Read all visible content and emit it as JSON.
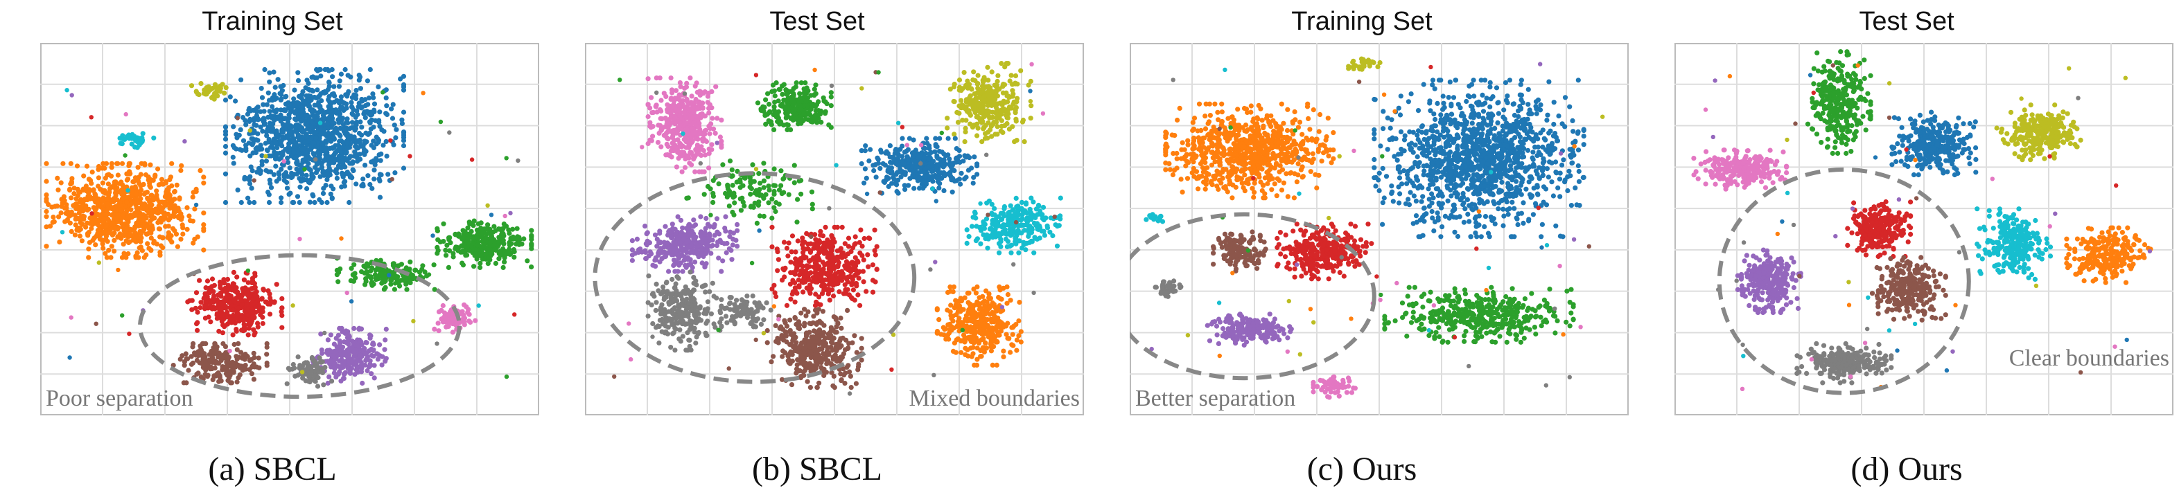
{
  "chart_data": [
    {
      "type": "scatter",
      "title": "Training Set",
      "caption": "(a) SBCL",
      "annotation": "Poor separation",
      "grid": true,
      "clusters": [
        {
          "color": "#1f77b4",
          "cx": 0.55,
          "cy": 0.25,
          "rx": 0.17,
          "ry": 0.17,
          "n": 1100
        },
        {
          "color": "#ff7f0e",
          "cx": 0.17,
          "cy": 0.45,
          "rx": 0.15,
          "ry": 0.12,
          "n": 800
        },
        {
          "color": "#2ca02c",
          "cx": 0.89,
          "cy": 0.54,
          "rx": 0.09,
          "ry": 0.06,
          "n": 300
        },
        {
          "color": "#2ca02c",
          "cx": 0.7,
          "cy": 0.62,
          "rx": 0.1,
          "ry": 0.04,
          "n": 150
        },
        {
          "color": "#d62728",
          "cx": 0.39,
          "cy": 0.7,
          "rx": 0.09,
          "ry": 0.08,
          "n": 350
        },
        {
          "color": "#8c564b",
          "cx": 0.36,
          "cy": 0.86,
          "rx": 0.09,
          "ry": 0.05,
          "n": 200
        },
        {
          "color": "#9467bd",
          "cx": 0.62,
          "cy": 0.84,
          "rx": 0.07,
          "ry": 0.07,
          "n": 250
        },
        {
          "color": "#7f7f7f",
          "cx": 0.54,
          "cy": 0.88,
          "rx": 0.05,
          "ry": 0.04,
          "n": 80
        },
        {
          "color": "#e377c2",
          "cx": 0.83,
          "cy": 0.74,
          "rx": 0.04,
          "ry": 0.035,
          "n": 80
        },
        {
          "color": "#bcbd22",
          "cx": 0.34,
          "cy": 0.13,
          "rx": 0.04,
          "ry": 0.02,
          "n": 40
        },
        {
          "color": "#17becf",
          "cx": 0.19,
          "cy": 0.26,
          "rx": 0.04,
          "ry": 0.02,
          "n": 30
        }
      ],
      "ellipse": {
        "cx": 0.52,
        "cy": 0.76,
        "rx": 0.32,
        "ry": 0.19
      }
    },
    {
      "type": "scatter",
      "title": "Test Set",
      "caption": "(b) SBCL",
      "annotation": "Mixed boundaries",
      "grid": true,
      "clusters": [
        {
          "color": "#e377c2",
          "cx": 0.2,
          "cy": 0.22,
          "rx": 0.07,
          "ry": 0.12,
          "n": 400
        },
        {
          "color": "#2ca02c",
          "cx": 0.42,
          "cy": 0.17,
          "rx": 0.07,
          "ry": 0.06,
          "n": 250
        },
        {
          "color": "#2ca02c",
          "cx": 0.33,
          "cy": 0.4,
          "rx": 0.12,
          "ry": 0.08,
          "n": 120
        },
        {
          "color": "#bcbd22",
          "cx": 0.81,
          "cy": 0.16,
          "rx": 0.08,
          "ry": 0.1,
          "n": 300
        },
        {
          "color": "#1f77b4",
          "cx": 0.67,
          "cy": 0.33,
          "rx": 0.11,
          "ry": 0.07,
          "n": 350
        },
        {
          "color": "#17becf",
          "cx": 0.86,
          "cy": 0.49,
          "rx": 0.09,
          "ry": 0.07,
          "n": 250
        },
        {
          "color": "#ff7f0e",
          "cx": 0.79,
          "cy": 0.76,
          "rx": 0.08,
          "ry": 0.1,
          "n": 350
        },
        {
          "color": "#9467bd",
          "cx": 0.2,
          "cy": 0.54,
          "rx": 0.1,
          "ry": 0.07,
          "n": 300
        },
        {
          "color": "#d62728",
          "cx": 0.48,
          "cy": 0.6,
          "rx": 0.1,
          "ry": 0.1,
          "n": 400
        },
        {
          "color": "#7f7f7f",
          "cx": 0.2,
          "cy": 0.72,
          "rx": 0.07,
          "ry": 0.1,
          "n": 250
        },
        {
          "color": "#7f7f7f",
          "cx": 0.32,
          "cy": 0.72,
          "rx": 0.05,
          "ry": 0.04,
          "n": 80
        },
        {
          "color": "#8c564b",
          "cx": 0.46,
          "cy": 0.82,
          "rx": 0.09,
          "ry": 0.1,
          "n": 350
        }
      ],
      "ellipse": {
        "cx": 0.34,
        "cy": 0.63,
        "rx": 0.32,
        "ry": 0.28
      }
    },
    {
      "type": "scatter",
      "title": "Training Set",
      "caption": "(c) Ours",
      "annotation": "Better separation",
      "grid": true,
      "clusters": [
        {
          "color": "#1f77b4",
          "cx": 0.7,
          "cy": 0.31,
          "rx": 0.2,
          "ry": 0.2,
          "n": 1200
        },
        {
          "color": "#ff7f0e",
          "cx": 0.24,
          "cy": 0.29,
          "rx": 0.16,
          "ry": 0.12,
          "n": 750
        },
        {
          "color": "#2ca02c",
          "cx": 0.7,
          "cy": 0.73,
          "rx": 0.18,
          "ry": 0.07,
          "n": 400
        },
        {
          "color": "#d62728",
          "cx": 0.39,
          "cy": 0.56,
          "rx": 0.09,
          "ry": 0.07,
          "n": 300
        },
        {
          "color": "#8c564b",
          "cx": 0.22,
          "cy": 0.56,
          "rx": 0.05,
          "ry": 0.05,
          "n": 150
        },
        {
          "color": "#9467bd",
          "cx": 0.24,
          "cy": 0.77,
          "rx": 0.08,
          "ry": 0.04,
          "n": 200
        },
        {
          "color": "#7f7f7f",
          "cx": 0.08,
          "cy": 0.66,
          "rx": 0.03,
          "ry": 0.02,
          "n": 40
        },
        {
          "color": "#e377c2",
          "cx": 0.41,
          "cy": 0.92,
          "rx": 0.04,
          "ry": 0.03,
          "n": 60
        },
        {
          "color": "#bcbd22",
          "cx": 0.47,
          "cy": 0.06,
          "rx": 0.03,
          "ry": 0.02,
          "n": 30
        },
        {
          "color": "#17becf",
          "cx": 0.05,
          "cy": 0.47,
          "rx": 0.02,
          "ry": 0.02,
          "n": 15
        }
      ],
      "ellipse": {
        "cx": 0.23,
        "cy": 0.68,
        "rx": 0.26,
        "ry": 0.22
      }
    },
    {
      "type": "scatter",
      "title": "Test Set",
      "caption": "(d) Ours",
      "annotation": "Clear boundaries",
      "grid": true,
      "clusters": [
        {
          "color": "#2ca02c",
          "cx": 0.33,
          "cy": 0.16,
          "rx": 0.06,
          "ry": 0.13,
          "n": 300
        },
        {
          "color": "#1f77b4",
          "cx": 0.52,
          "cy": 0.27,
          "rx": 0.08,
          "ry": 0.08,
          "n": 300
        },
        {
          "color": "#bcbd22",
          "cx": 0.73,
          "cy": 0.24,
          "rx": 0.08,
          "ry": 0.07,
          "n": 250
        },
        {
          "color": "#e377c2",
          "cx": 0.13,
          "cy": 0.34,
          "rx": 0.09,
          "ry": 0.05,
          "n": 250
        },
        {
          "color": "#17becf",
          "cx": 0.68,
          "cy": 0.54,
          "rx": 0.07,
          "ry": 0.09,
          "n": 250
        },
        {
          "color": "#ff7f0e",
          "cx": 0.87,
          "cy": 0.57,
          "rx": 0.08,
          "ry": 0.07,
          "n": 250
        },
        {
          "color": "#d62728",
          "cx": 0.41,
          "cy": 0.5,
          "rx": 0.06,
          "ry": 0.07,
          "n": 250
        },
        {
          "color": "#8c564b",
          "cx": 0.47,
          "cy": 0.66,
          "rx": 0.07,
          "ry": 0.08,
          "n": 250
        },
        {
          "color": "#9467bd",
          "cx": 0.19,
          "cy": 0.64,
          "rx": 0.06,
          "ry": 0.08,
          "n": 250
        },
        {
          "color": "#7f7f7f",
          "cx": 0.34,
          "cy": 0.86,
          "rx": 0.09,
          "ry": 0.05,
          "n": 250
        }
      ],
      "ellipse": {
        "cx": 0.34,
        "cy": 0.64,
        "rx": 0.25,
        "ry": 0.3
      }
    }
  ]
}
